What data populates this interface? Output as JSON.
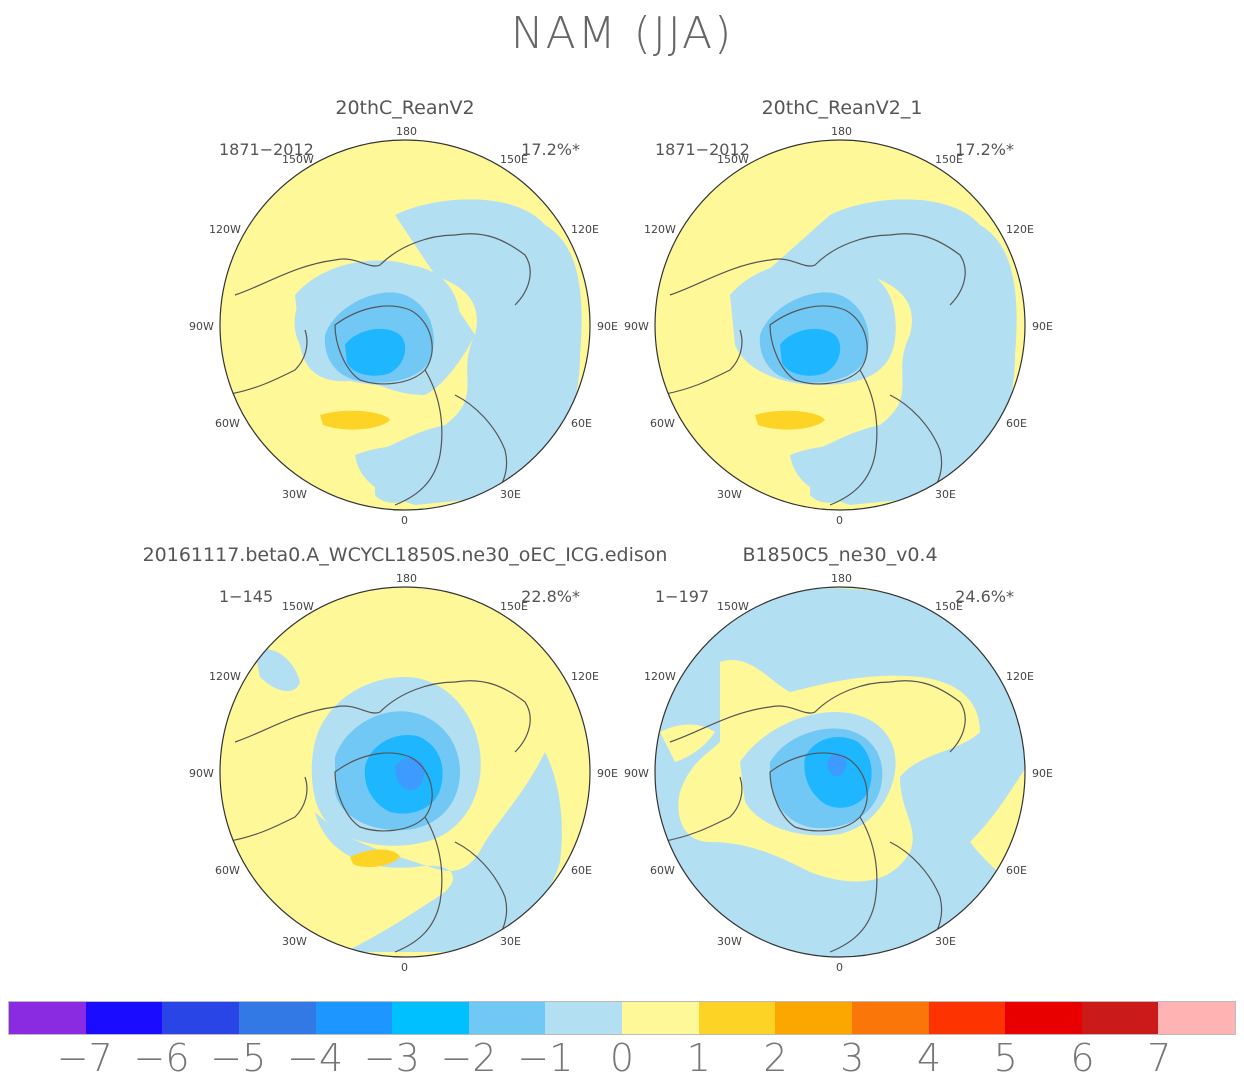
{
  "title": "NAM (JJA)",
  "panels": [
    {
      "title": "20thC_ReanV2",
      "period": "1871−2012",
      "variance": "17.2%*",
      "lon_labels": [
        "180",
        "150W",
        "150E",
        "120W",
        "120E",
        "90W",
        "90E",
        "60W",
        "60E",
        "30W",
        "30E",
        "0"
      ]
    },
    {
      "title": "20thC_ReanV2_1",
      "period": "1871−2012",
      "variance": "17.2%*",
      "lon_labels": [
        "180",
        "150W",
        "150E",
        "120W",
        "120E",
        "90W",
        "90E",
        "60W",
        "60E",
        "30W",
        "30E",
        "0"
      ]
    },
    {
      "title": "20161117.beta0.A_WCYCL1850S.ne30_oEC_ICG.edison",
      "period": "1−145",
      "variance": "22.8%*",
      "lon_labels": [
        "180",
        "150W",
        "150E",
        "120W",
        "120E",
        "90W",
        "90E",
        "60W",
        "60E",
        "30W",
        "30E",
        "0"
      ]
    },
    {
      "title": "B1850C5_ne30_v0.4",
      "period": "1−197",
      "variance": "24.6%*",
      "lon_labels": [
        "180",
        "150W",
        "150E",
        "120W",
        "120E",
        "90W",
        "90E",
        "60W",
        "60E",
        "30W",
        "30E",
        "0"
      ]
    }
  ],
  "colorbar": {
    "colors": [
      "#8a2be2",
      "#1a0dff",
      "#2a45e6",
      "#3379e6",
      "#1e96ff",
      "#00c0ff",
      "#71c8f4",
      "#b2dff2",
      "#fff899",
      "#fdd325",
      "#fba700",
      "#fa7608",
      "#fd3301",
      "#e80000",
      "#cb1a1a",
      "#ffb3b3"
    ],
    "labels": [
      "−7",
      "−6",
      "−5",
      "−4",
      "−3",
      "−2",
      "−1",
      "0",
      "1",
      "2",
      "3",
      "4",
      "5",
      "6",
      "7"
    ]
  }
}
